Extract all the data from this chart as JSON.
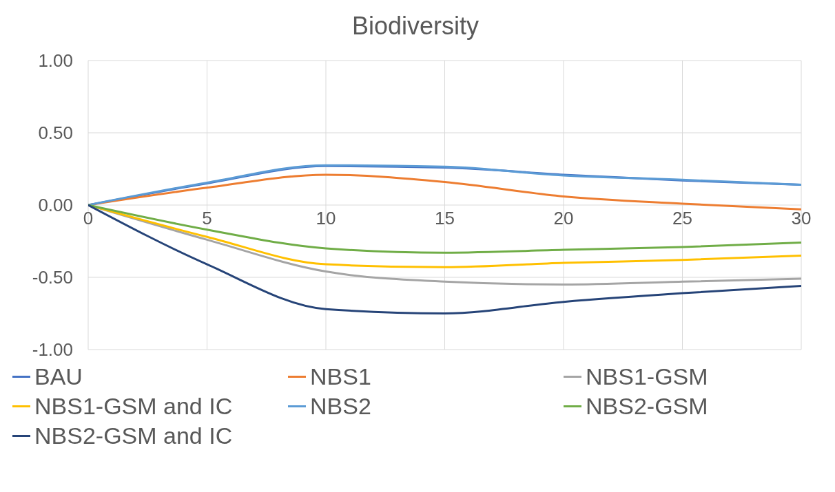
{
  "chart_data": {
    "type": "line",
    "title": "Biodiversity",
    "x": [
      0,
      5,
      10,
      15,
      20,
      25,
      30
    ],
    "xlim": [
      0,
      30
    ],
    "xticks": [
      0,
      5,
      10,
      15,
      20,
      25,
      30
    ],
    "ylim": [
      -1,
      1
    ],
    "yticks": [
      {
        "value": -1,
        "label": "-1.00"
      },
      {
        "value": -0.5,
        "label": "-0.50"
      },
      {
        "value": 0,
        "label": "0.00"
      },
      {
        "value": 0.5,
        "label": "0.50"
      },
      {
        "value": 1,
        "label": "1.00"
      }
    ],
    "grid": true,
    "legend": "bottom",
    "marker": "none",
    "line_style": "solid",
    "series": [
      {
        "name": "BAU",
        "color": "#4472c4",
        "values": [
          0,
          0.15,
          0.27,
          0.26,
          0.21,
          0.17,
          0.14
        ]
      },
      {
        "name": "NBS1",
        "color": "#ed7d31",
        "values": [
          0,
          0.12,
          0.21,
          0.16,
          0.06,
          0.01,
          -0.03
        ]
      },
      {
        "name": "NBS1-GSM",
        "color": "#a5a5a5",
        "values": [
          0,
          -0.24,
          -0.46,
          -0.53,
          -0.55,
          -0.53,
          -0.51
        ]
      },
      {
        "name": "NBS1-GSM and IC",
        "color": "#ffc000",
        "values": [
          0,
          -0.22,
          -0.41,
          -0.43,
          -0.4,
          -0.38,
          -0.35
        ]
      },
      {
        "name": "NBS2",
        "color": "#5b9bd5",
        "values": [
          0,
          0.155,
          0.275,
          0.265,
          0.205,
          0.175,
          0.14
        ]
      },
      {
        "name": "NBS2-GSM",
        "color": "#70ad47",
        "values": [
          0,
          -0.17,
          -0.3,
          -0.33,
          -0.31,
          -0.29,
          -0.26
        ]
      },
      {
        "name": "NBS2-GSM and IC",
        "color": "#264478",
        "values": [
          0,
          -0.41,
          -0.72,
          -0.75,
          -0.67,
          -0.61,
          -0.56
        ]
      }
    ]
  }
}
